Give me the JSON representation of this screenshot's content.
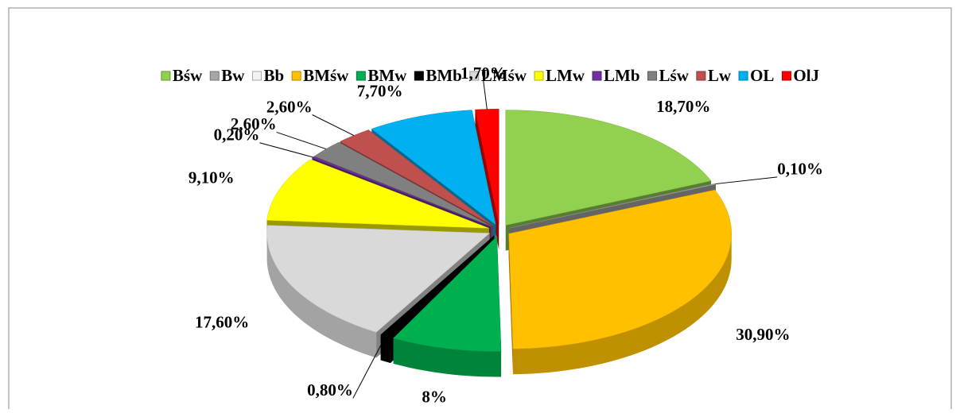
{
  "chart_data": {
    "type": "pie3d",
    "categories": [
      "Bśw",
      "Bw",
      "Bb",
      "BMśw",
      "BMw",
      "BMb",
      "LMśw",
      "LMw",
      "LMb",
      "Lśw",
      "Lw",
      "OL",
      "OlJ"
    ],
    "values": [
      18.7,
      0.1,
      0,
      30.9,
      8,
      0.8,
      17.6,
      9.1,
      0.2,
      2.6,
      2.6,
      7.7,
      1.7
    ],
    "value_labels": [
      "18,70%",
      "0,10%",
      null,
      "30,90%",
      "8%",
      "0,80%",
      "17,60%",
      "9,10%",
      "0,20%",
      "2,60%",
      "2,60%",
      "7,70%",
      "1,70%"
    ],
    "colors": [
      "#92d050",
      "#a6a6a6",
      "#f2f2f2",
      "#ffc000",
      "#00b050",
      "#000000",
      "#d9d9d9",
      "#ffff00",
      "#7030a0",
      "#808080",
      "#c0504d",
      "#00b0f0",
      "#ff0000"
    ],
    "legend": "top"
  }
}
